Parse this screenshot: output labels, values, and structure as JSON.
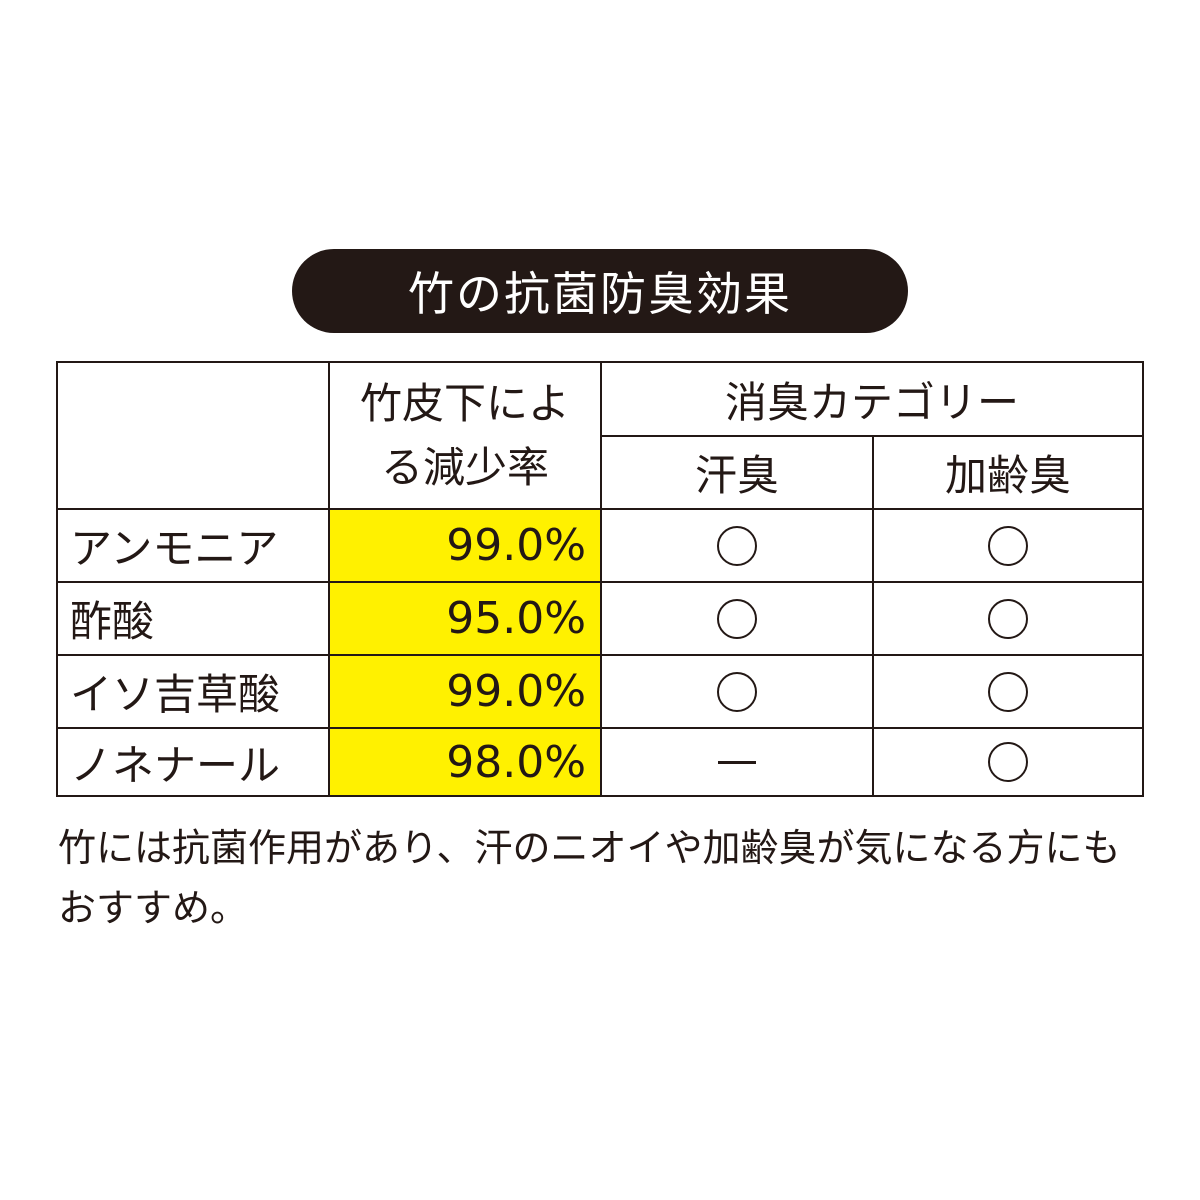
{
  "title": "竹の抗菌防臭効果",
  "colors": {
    "title_bg": "#231815",
    "highlight": "#fff100",
    "line": "#231815"
  },
  "table": {
    "header": {
      "rate_label": "竹皮下による減少率",
      "category_label": "消臭カテゴリー",
      "sub_columns": [
        "汗臭",
        "加齢臭"
      ]
    },
    "rows": [
      {
        "name": "アンモニア",
        "rate": "99.0%",
        "sweat": "circle",
        "aging": "circle"
      },
      {
        "name": "酢酸",
        "rate": "95.0%",
        "sweat": "circle",
        "aging": "circle"
      },
      {
        "name": "イソ吉草酸",
        "rate": "99.0%",
        "sweat": "circle",
        "aging": "circle"
      },
      {
        "name": "ノネナール",
        "rate": "98.0%",
        "sweat": "dash",
        "aging": "circle"
      }
    ]
  },
  "note": "竹には抗菌作用があり、汗のニオイや加齢臭が気になる方にもおすすめ。"
}
